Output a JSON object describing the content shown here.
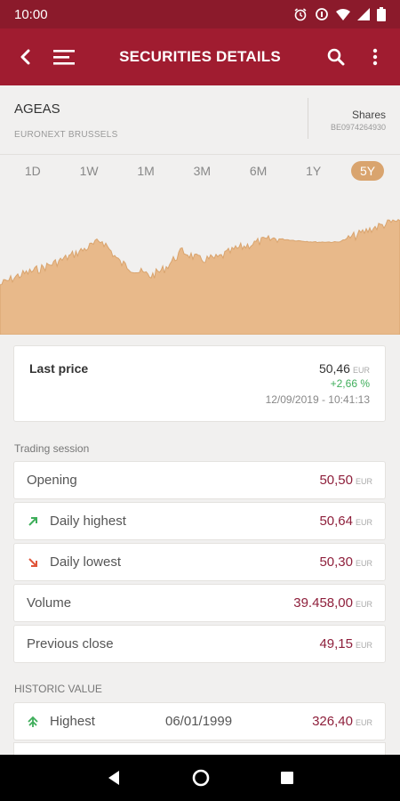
{
  "statusbar": {
    "time": "10:00"
  },
  "appbar": {
    "title": "SECURITIES DETAILS"
  },
  "security": {
    "name": "AGEAS",
    "market": "EURONEXT BRUSSELS",
    "type": "Shares",
    "isin": "BE0974264930"
  },
  "periods": [
    "1D",
    "1W",
    "1M",
    "3M",
    "6M",
    "1Y",
    "5Y"
  ],
  "active_period": "5Y",
  "colors": {
    "brand": "#a01c30",
    "chart_fill": "#e8b98a",
    "chart_line": "#d9a46e",
    "value": "#8e1f3b",
    "positive": "#3fae5b",
    "negative": "#e0553a"
  },
  "last_price": {
    "label": "Last price",
    "value": "50,46",
    "currency": "EUR",
    "change": "+2,66 %",
    "datetime": "12/09/2019 - 10:41:13"
  },
  "trading_session": {
    "title": "Trading session",
    "rows": [
      {
        "label": "Opening",
        "value": "50,50",
        "currency": "EUR",
        "icon": ""
      },
      {
        "label": "Daily highest",
        "value": "50,64",
        "currency": "EUR",
        "icon": "arrow-up-right-icon"
      },
      {
        "label": "Daily lowest",
        "value": "50,30",
        "currency": "EUR",
        "icon": "arrow-down-right-icon"
      },
      {
        "label": "Volume",
        "value": "39.458,00",
        "currency": "EUR",
        "icon": ""
      },
      {
        "label": "Previous close",
        "value": "49,15",
        "currency": "EUR",
        "icon": ""
      }
    ]
  },
  "historic": {
    "title": "HISTORIC VALUE",
    "highest": {
      "label": "Highest",
      "date": "06/01/1999",
      "value": "326,40",
      "currency": "EUR",
      "icon": "arrow-up-icon"
    }
  }
}
